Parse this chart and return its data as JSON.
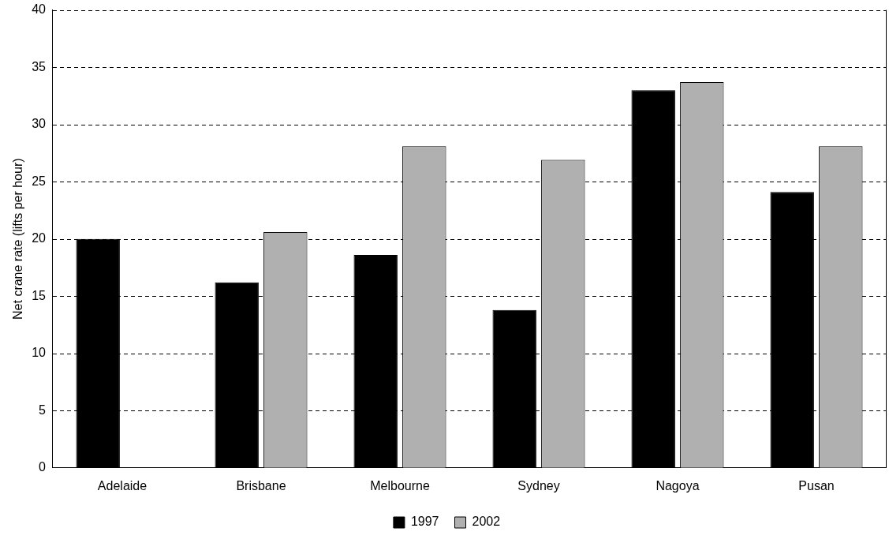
{
  "chart_data": {
    "type": "bar",
    "ylabel": "Net crane rate (lifts per hour)",
    "categories": [
      "Adelaide",
      "Brisbane",
      "Melbourne",
      "Sydney",
      "Nagoya",
      "Pusan"
    ],
    "series": [
      {
        "name": "1997",
        "color": "#000000",
        "values": [
          20.0,
          16.2,
          18.6,
          13.8,
          33.0,
          24.1
        ]
      },
      {
        "name": "2002",
        "color": "#b0b0b0",
        "values": [
          null,
          20.6,
          28.1,
          26.9,
          33.7,
          28.1
        ]
      }
    ],
    "ylim": [
      0,
      40
    ],
    "yticks": [
      0,
      5,
      10,
      15,
      20,
      25,
      30,
      35,
      40
    ],
    "grid": "y",
    "legend": "bottom"
  }
}
